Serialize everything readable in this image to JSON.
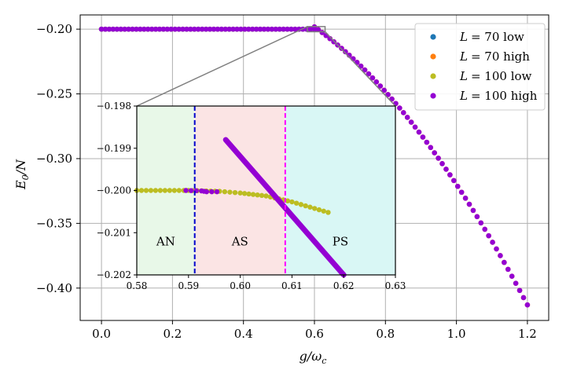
{
  "chart_data": [
    {
      "type": "scatter",
      "role": "main",
      "xlabel": "g/ω",
      "xlabel_sub": "c",
      "ylabel": "E",
      "ylabel_sub": "0",
      "ylabel_tail": "/N",
      "xlim": [
        -0.06,
        1.26
      ],
      "ylim": [
        -0.425,
        -0.189
      ],
      "xticks": [
        0.0,
        0.2,
        0.4,
        0.6,
        0.8,
        1.0,
        1.2
      ],
      "xtick_labels": [
        "0.0",
        "0.2",
        "0.4",
        "0.6",
        "0.8",
        "1.0",
        "1.2"
      ],
      "yticks": [
        -0.2,
        -0.25,
        -0.3,
        -0.35,
        -0.4
      ],
      "ytick_labels": [
        "−0.20",
        "−0.25",
        "−0.30",
        "−0.35",
        "−0.40"
      ],
      "grid": true,
      "legend_position": "top-right",
      "series": [
        {
          "name": "L = 70 low",
          "legend_var": "L",
          "legend_value": "= 70 low",
          "color": "#1f77b4",
          "segments": [
            {
              "from": 0.0,
              "to": 0.6,
              "kind": "flat",
              "y": -0.2
            }
          ]
        },
        {
          "name": "L = 70 high",
          "legend_var": "L",
          "legend_value": "= 70 high",
          "color": "#ff7f0e",
          "segments": [
            {
              "from": 0.6,
              "to": 1.2,
              "kind": "curve",
              "y_start": -0.1982,
              "y_end": -0.413
            }
          ]
        },
        {
          "name": "L = 100 low",
          "legend_var": "L",
          "legend_value": "= 100 low",
          "color": "#bcbd22",
          "segments": [
            {
              "from": 0.0,
              "to": 0.6,
              "kind": "flat",
              "y": -0.2
            }
          ]
        },
        {
          "name": "L = 100 high",
          "legend_var": "L",
          "legend_value": "= 100 high",
          "color": "#9400d3",
          "segments": [
            {
              "from": 0.0,
              "to": 0.6,
              "kind": "flat",
              "y": -0.2
            },
            {
              "from": 0.6,
              "to": 1.2,
              "kind": "curve",
              "y_start": -0.1982,
              "y_end": -0.413
            }
          ]
        }
      ]
    },
    {
      "type": "scatter",
      "role": "inset",
      "xlim": [
        0.58,
        0.63
      ],
      "ylim": [
        -0.202,
        -0.198
      ],
      "xticks": [
        0.58,
        0.59,
        0.6,
        0.61,
        0.62,
        0.63
      ],
      "xtick_labels": [
        "0.58",
        "0.59",
        "0.60",
        "0.61",
        "0.62",
        "0.63"
      ],
      "yticks": [
        -0.198,
        -0.199,
        -0.2,
        -0.201,
        -0.202
      ],
      "ytick_labels": [
        "−0.198",
        "−0.199",
        "−0.200",
        "−0.201",
        "−0.202"
      ],
      "regions": [
        {
          "label": "AN",
          "from": 0.58,
          "to": 0.5912,
          "color": "#e8f8e8"
        },
        {
          "label": "AS",
          "from": 0.5912,
          "to": 0.6087,
          "color": "#fbe4e4"
        },
        {
          "label": "PS",
          "from": 0.6087,
          "to": 0.63,
          "color": "#d9f7f5"
        }
      ],
      "boundaries": [
        {
          "x": 0.5912,
          "color": "#0000cc"
        },
        {
          "x": 0.6087,
          "color": "#ff00ff"
        }
      ],
      "series": [
        {
          "name": "L = 100 low",
          "color": "#bcbd22",
          "points": [
            [
              0.58,
              -0.2
            ],
            [
              0.59,
              -0.2
            ],
            [
              0.596,
              -0.20002
            ],
            [
              0.6,
              -0.20006
            ],
            [
              0.605,
              -0.20013
            ],
            [
              0.61,
              -0.20027
            ],
            [
              0.617,
              -0.20052
            ]
          ]
        },
        {
          "name": "L = 100 high",
          "color": "#9400d3",
          "points": [
            [
              0.5895,
              -0.2
            ],
            [
              0.5925,
              -0.20001
            ],
            [
              0.5935,
              -0.20003
            ],
            [
              0.5955,
              -0.20003
            ]
          ],
          "line": [
            [
              0.5972,
              -0.1988
            ],
            [
              0.62,
              -0.202
            ]
          ]
        }
      ]
    }
  ]
}
